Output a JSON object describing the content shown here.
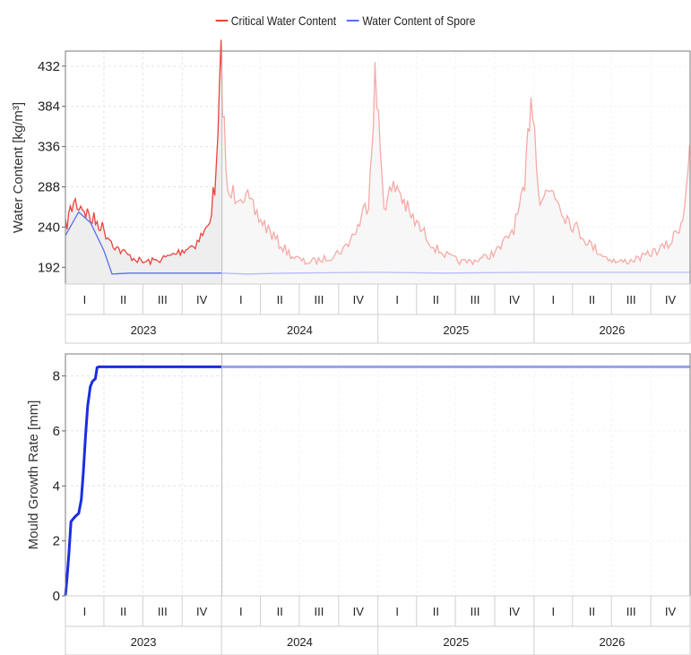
{
  "chart_data": [
    {
      "type": "line",
      "ylabel": "Water Content [kg/m³]",
      "y_ticks": [
        "432",
        "384",
        "336",
        "288",
        "240",
        "192"
      ],
      "ylim": [
        172,
        450
      ],
      "x_range": [
        "2023-01-01",
        "2026-12-31"
      ],
      "quarter_labels": [
        "I",
        "II",
        "III",
        "IV"
      ],
      "years": [
        "2023",
        "2024",
        "2025",
        "2026"
      ],
      "highlighted_period": [
        "2023-01-01",
        "2023-12-31"
      ],
      "grid": true,
      "legend": "top-center",
      "series": [
        {
          "name": "Critical Water Content",
          "color": "#e8453c",
          "x": [
            "2023-01-01",
            "2023-01-20",
            "2023-02-10",
            "2023-03-01",
            "2023-03-20",
            "2023-04-10",
            "2023-05-01",
            "2023-06-01",
            "2023-07-01",
            "2023-08-01",
            "2023-09-01",
            "2023-10-01",
            "2023-11-01",
            "2023-12-01",
            "2023-12-20",
            "2023-12-31",
            "2024-01-15",
            "2024-02-15",
            "2024-03-15",
            "2024-04-15",
            "2024-05-15",
            "2024-06-15",
            "2024-07-15",
            "2024-08-15",
            "2024-09-15",
            "2024-10-15",
            "2024-11-15",
            "2024-12-10",
            "2024-12-25",
            "2025-01-15",
            "2025-02-15",
            "2025-03-15",
            "2025-04-15",
            "2025-05-15",
            "2025-06-15",
            "2025-07-15",
            "2025-08-15",
            "2025-09-15",
            "2025-10-15",
            "2025-11-15",
            "2025-12-10",
            "2025-12-25",
            "2026-01-15",
            "2026-02-15",
            "2026-03-15",
            "2026-04-15",
            "2026-05-15",
            "2026-06-15",
            "2026-07-15",
            "2026-08-15",
            "2026-09-15",
            "2026-10-15",
            "2026-11-15",
            "2026-12-15",
            "2026-12-31"
          ],
          "values": [
            240,
            270,
            265,
            250,
            245,
            230,
            215,
            205,
            198,
            200,
            205,
            212,
            220,
            240,
            300,
            440,
            275,
            285,
            260,
            240,
            220,
            205,
            198,
            200,
            205,
            215,
            240,
            275,
            420,
            270,
            290,
            255,
            235,
            215,
            205,
            198,
            200,
            205,
            215,
            240,
            280,
            410,
            275,
            285,
            255,
            235,
            218,
            205,
            198,
            200,
            205,
            212,
            220,
            250,
            338
          ]
        },
        {
          "name": "Water Content of Spore",
          "color": "#5b6cf0",
          "x": [
            "2023-01-01",
            "2023-02-01",
            "2023-03-01",
            "2023-04-01",
            "2023-04-20",
            "2023-06-01",
            "2023-12-31",
            "2024-03-01",
            "2024-06-01",
            "2024-12-31",
            "2025-06-01",
            "2025-12-31",
            "2026-06-01",
            "2026-12-31"
          ],
          "values": [
            230,
            258,
            245,
            212,
            184,
            185,
            185,
            184,
            185,
            186,
            185,
            186,
            186,
            186
          ]
        }
      ]
    },
    {
      "type": "line",
      "ylabel": "Mould Growth Rate [mm]",
      "y_ticks": [
        "8",
        "6",
        "4",
        "2",
        "0"
      ],
      "ylim": [
        0,
        8.8
      ],
      "x_range": [
        "2023-01-01",
        "2026-12-31"
      ],
      "quarter_labels": [
        "I",
        "II",
        "III",
        "IV"
      ],
      "years": [
        "2023",
        "2024",
        "2025",
        "2026"
      ],
      "highlighted_period": [
        "2023-01-01",
        "2023-12-31"
      ],
      "grid": true,
      "series": [
        {
          "color": "#1a2ee0",
          "x": [
            "2023-01-01",
            "2023-01-05",
            "2023-01-09",
            "2023-01-14",
            "2023-01-19",
            "2023-01-25",
            "2023-02-01",
            "2023-02-07",
            "2023-02-12",
            "2023-02-17",
            "2023-02-22",
            "2023-02-28",
            "2023-03-05",
            "2023-03-12",
            "2023-03-16",
            "2023-03-20",
            "2023-03-27",
            "2023-04-02",
            "2023-12-31",
            "2026-12-31"
          ],
          "values": [
            0,
            0.7,
            1.5,
            2.7,
            2.8,
            2.9,
            3.0,
            3.5,
            4.5,
            5.8,
            6.9,
            7.6,
            7.8,
            7.9,
            8.3,
            8.33,
            8.33,
            8.33,
            8.33,
            8.33
          ]
        }
      ]
    }
  ],
  "legend": {
    "items": [
      {
        "label": "Critical Water Content",
        "color": "#e8453c"
      },
      {
        "label": "Water Content of Spore",
        "color": "#5b6cf0"
      }
    ]
  }
}
